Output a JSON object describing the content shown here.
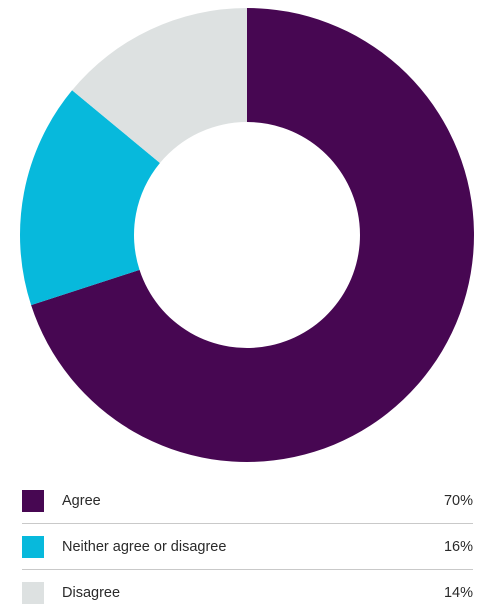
{
  "chart_data": {
    "type": "pie",
    "donut": true,
    "categories": [
      "Agree",
      "Neither agree or disagree",
      "Disagree"
    ],
    "values": [
      70,
      16,
      14
    ],
    "value_labels": [
      "70%",
      "16%",
      "14%"
    ],
    "colors": [
      "#470752",
      "#07b9dc",
      "#dde1e1"
    ],
    "legend_position": "bottom"
  }
}
